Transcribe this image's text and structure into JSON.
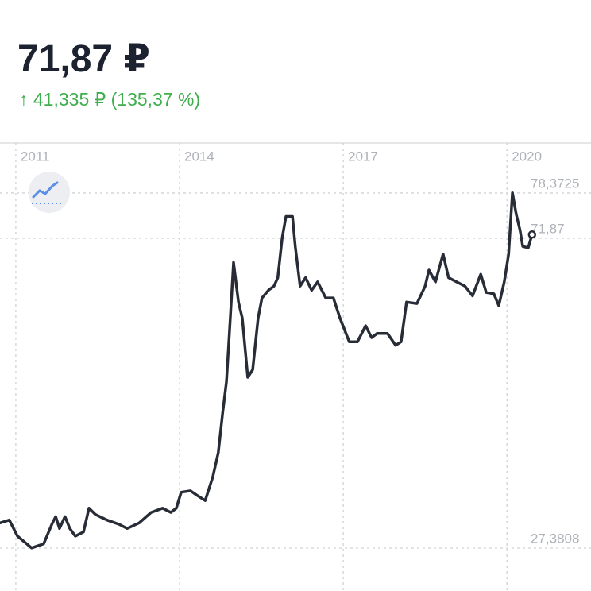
{
  "header": {
    "price": "71,87 ₽",
    "change": "↑ 41,335 ₽ (135,37 %)"
  },
  "chart_data": {
    "type": "line",
    "x": [
      2010.71,
      2010.88,
      2011.03,
      2011.29,
      2011.51,
      2011.66,
      2011.73,
      2011.8,
      2011.9,
      2011.99,
      2012.09,
      2012.24,
      2012.34,
      2012.46,
      2012.67,
      2012.89,
      2013.04,
      2013.26,
      2013.48,
      2013.69,
      2013.84,
      2013.94,
      2014.03,
      2014.2,
      2014.35,
      2014.47,
      2014.61,
      2014.71,
      2014.79,
      2014.86,
      2014.93,
      2014.99,
      2015.08,
      2015.15,
      2015.25,
      2015.34,
      2015.44,
      2015.51,
      2015.63,
      2015.73,
      2015.8,
      2015.88,
      2015.95,
      2016.07,
      2016.12,
      2016.21,
      2016.31,
      2016.42,
      2016.53,
      2016.68,
      2016.82,
      2016.94,
      2017.11,
      2017.26,
      2017.41,
      2017.52,
      2017.62,
      2017.81,
      2017.96,
      2018.06,
      2018.16,
      2018.35,
      2018.5,
      2018.57,
      2018.69,
      2018.83,
      2018.93,
      2019.08,
      2019.23,
      2019.37,
      2019.52,
      2019.62,
      2019.76,
      2019.85,
      2019.95,
      2020.03,
      2020.1,
      2020.17,
      2020.24,
      2020.29,
      2020.39,
      2020.46
    ],
    "series": [
      {
        "color": "#272c37",
        "values": [
          31.0,
          31.4,
          29.1,
          27.4,
          28.0,
          30.8,
          31.9,
          30.2,
          31.9,
          30.2,
          29.1,
          29.7,
          33.1,
          32.2,
          31.4,
          30.8,
          30.2,
          31.0,
          32.5,
          33.1,
          32.5,
          33.1,
          35.4,
          35.6,
          34.8,
          34.2,
          37.6,
          41.1,
          46.8,
          51.3,
          60.4,
          68.4,
          62.7,
          60.4,
          51.9,
          53.0,
          60.4,
          63.3,
          64.4,
          65.0,
          66.2,
          71.9,
          75.0,
          75.0,
          70.7,
          65.0,
          66.2,
          64.4,
          65.6,
          63.3,
          63.3,
          60.4,
          57.0,
          57.0,
          59.3,
          57.6,
          58.2,
          58.2,
          56.5,
          57.0,
          62.7,
          62.5,
          65.0,
          67.3,
          65.6,
          69.6,
          66.2,
          65.6,
          65.0,
          63.6,
          66.7,
          64.1,
          63.9,
          62.2,
          65.6,
          69.6,
          78.4,
          75.3,
          73.0,
          70.7,
          70.5,
          72.4
        ]
      }
    ],
    "xlim": [
      2010.71,
      2021.54
    ],
    "xticks": [
      2011,
      2014,
      2017,
      2020
    ],
    "ylim": [
      21.22,
      85.55
    ],
    "yticks": [
      {
        "value": 78.3725,
        "label": "78,3725"
      },
      {
        "value": 71.87,
        "label": "71,87"
      },
      {
        "value": 27.3808,
        "label": "27,3808"
      }
    ],
    "grid": true
  }
}
